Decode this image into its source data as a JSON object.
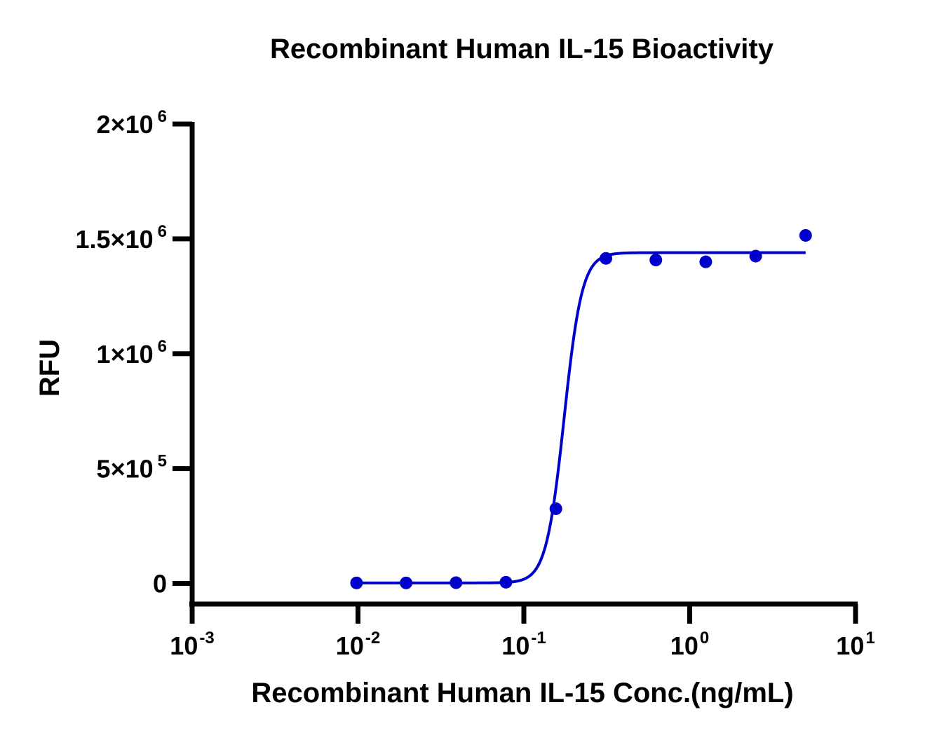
{
  "chart_data": {
    "type": "scatter",
    "title": "Recombinant Human IL-15 Bioactivity",
    "xlabel": "Recombinant Human IL-15 Conc.(ng/mL)",
    "ylabel": "RFU",
    "x_scale": "log",
    "xlim": [
      0.001,
      10
    ],
    "ylim": [
      -90000,
      2000000
    ],
    "x_ticks": [
      {
        "value": 0.001,
        "base": "10",
        "exp": "-3"
      },
      {
        "value": 0.01,
        "base": "10",
        "exp": "-2"
      },
      {
        "value": 0.1,
        "base": "10",
        "exp": "-1"
      },
      {
        "value": 1,
        "base": "10",
        "exp": "0"
      },
      {
        "value": 10,
        "base": "10",
        "exp": "1"
      }
    ],
    "y_ticks": [
      {
        "value": 0,
        "mant": "0",
        "exp": ""
      },
      {
        "value": 500000,
        "mant": "5×10",
        "exp": "5"
      },
      {
        "value": 1000000,
        "mant": "1×10",
        "exp": "6"
      },
      {
        "value": 1500000,
        "mant": "1.5×10",
        "exp": "6"
      },
      {
        "value": 2000000,
        "mant": "2×10",
        "exp": "6"
      }
    ],
    "series": [
      {
        "points": [
          {
            "x": 0.0098,
            "y": 2000
          },
          {
            "x": 0.0195,
            "y": 2000
          },
          {
            "x": 0.039,
            "y": 3000
          },
          {
            "x": 0.078,
            "y": 5000
          },
          {
            "x": 0.156,
            "y": 325000
          },
          {
            "x": 0.3125,
            "y": 1415000
          },
          {
            "x": 0.625,
            "y": 1408000
          },
          {
            "x": 1.25,
            "y": 1400000
          },
          {
            "x": 2.5,
            "y": 1425000
          },
          {
            "x": 5,
            "y": 1515000
          }
        ],
        "fit": {
          "model": "4PL",
          "bottom": 2000,
          "top": 1440000,
          "ec50": 0.175,
          "hill": 8
        }
      }
    ],
    "grid": false,
    "legend": "none",
    "colors": {
      "series": "#0000CC",
      "axis": "#000000"
    }
  }
}
